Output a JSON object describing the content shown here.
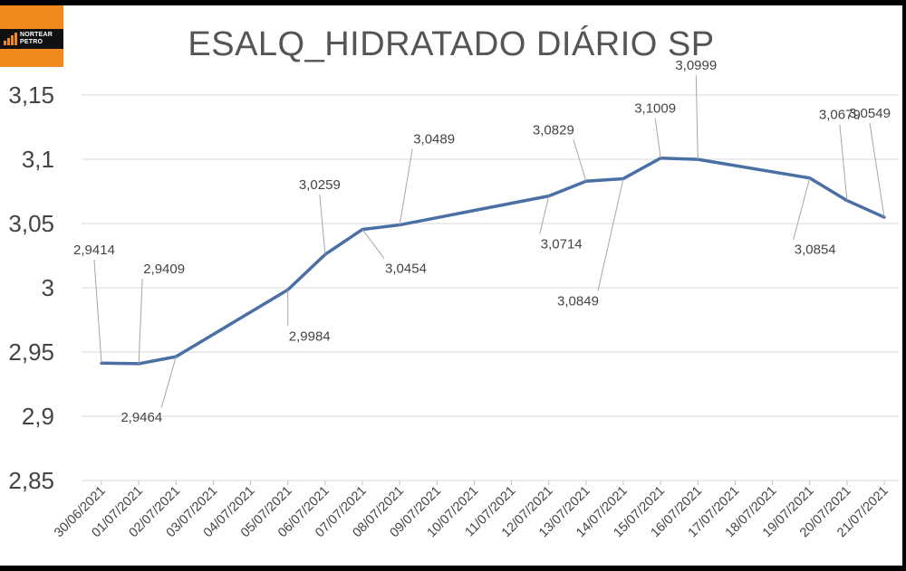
{
  "brand": {
    "line1": "NORTEAR",
    "line2": "PETRO"
  },
  "chart_data": {
    "type": "line",
    "title": "ESALQ_HIDRATADO DIÁRIO SP",
    "xlabel": "",
    "ylabel": "",
    "ylim": [
      2.85,
      3.15
    ],
    "yticks": [
      "3,15",
      "3,1",
      "3,05",
      "3",
      "2,95",
      "2,9",
      "2,85"
    ],
    "ytick_values": [
      3.15,
      3.1,
      3.05,
      3.0,
      2.95,
      2.9,
      2.85
    ],
    "grid": true,
    "legend": "none",
    "line_color": "#4a6fa5",
    "categories": [
      "30/06/2021",
      "01/07/2021",
      "02/07/2021",
      "03/07/2021",
      "04/07/2021",
      "05/07/2021",
      "06/07/2021",
      "07/07/2021",
      "08/07/2021",
      "09/07/2021",
      "10/07/2021",
      "11/07/2021",
      "12/07/2021",
      "13/07/2021",
      "14/07/2021",
      "15/07/2021",
      "16/07/2021",
      "17/07/2021",
      "18/07/2021",
      "19/07/2021",
      "20/07/2021",
      "21/07/2021"
    ],
    "points": [
      {
        "x": "30/06/2021",
        "y": 2.9414,
        "label": "2,9414"
      },
      {
        "x": "01/07/2021",
        "y": 2.9409,
        "label": "2,9409"
      },
      {
        "x": "02/07/2021",
        "y": 2.9464,
        "label": "2,9464"
      },
      {
        "x": "05/07/2021",
        "y": 2.9984,
        "label": "2,9984"
      },
      {
        "x": "06/07/2021",
        "y": 3.0259,
        "label": "3,0259"
      },
      {
        "x": "07/07/2021",
        "y": 3.0454,
        "label": "3,0454"
      },
      {
        "x": "08/07/2021",
        "y": 3.0489,
        "label": "3,0489"
      },
      {
        "x": "12/07/2021",
        "y": 3.0714,
        "label": "3,0714"
      },
      {
        "x": "13/07/2021",
        "y": 3.0829,
        "label": "3,0829"
      },
      {
        "x": "14/07/2021",
        "y": 3.0849,
        "label": "3,0849"
      },
      {
        "x": "15/07/2021",
        "y": 3.1009,
        "label": "3,1009"
      },
      {
        "x": "16/07/2021",
        "y": 3.0999,
        "label": "3,0999"
      },
      {
        "x": "19/07/2021",
        "y": 3.0854,
        "label": "3,0854"
      },
      {
        "x": "20/07/2021",
        "y": 3.0679,
        "label": "3,0679"
      },
      {
        "x": "21/07/2021",
        "y": 3.0549,
        "label": "3,0549"
      }
    ]
  }
}
